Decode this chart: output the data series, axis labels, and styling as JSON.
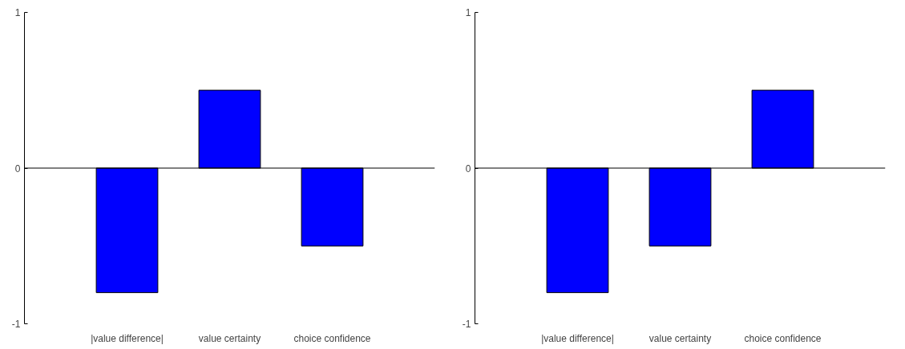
{
  "chart_data": [
    {
      "type": "bar",
      "categories": [
        "|value difference|",
        "value certainty",
        "choice confidence"
      ],
      "values": [
        -0.8,
        0.5,
        -0.5
      ],
      "color": "#0000ff",
      "ylim": [
        -1,
        1
      ],
      "yticks": [
        -1,
        0,
        1
      ],
      "ref_lines": [
        {
          "axis": "y",
          "value": 0
        }
      ]
    },
    {
      "type": "bar",
      "categories": [
        "|value difference|",
        "value certainty",
        "choice confidence"
      ],
      "values": [
        -0.8,
        -0.5,
        0.5
      ],
      "color": "#0000ff",
      "ylim": [
        -1,
        1
      ],
      "yticks": [
        -1,
        0,
        1
      ],
      "ref_lines": [
        {
          "axis": "y",
          "value": 0
        }
      ]
    }
  ]
}
